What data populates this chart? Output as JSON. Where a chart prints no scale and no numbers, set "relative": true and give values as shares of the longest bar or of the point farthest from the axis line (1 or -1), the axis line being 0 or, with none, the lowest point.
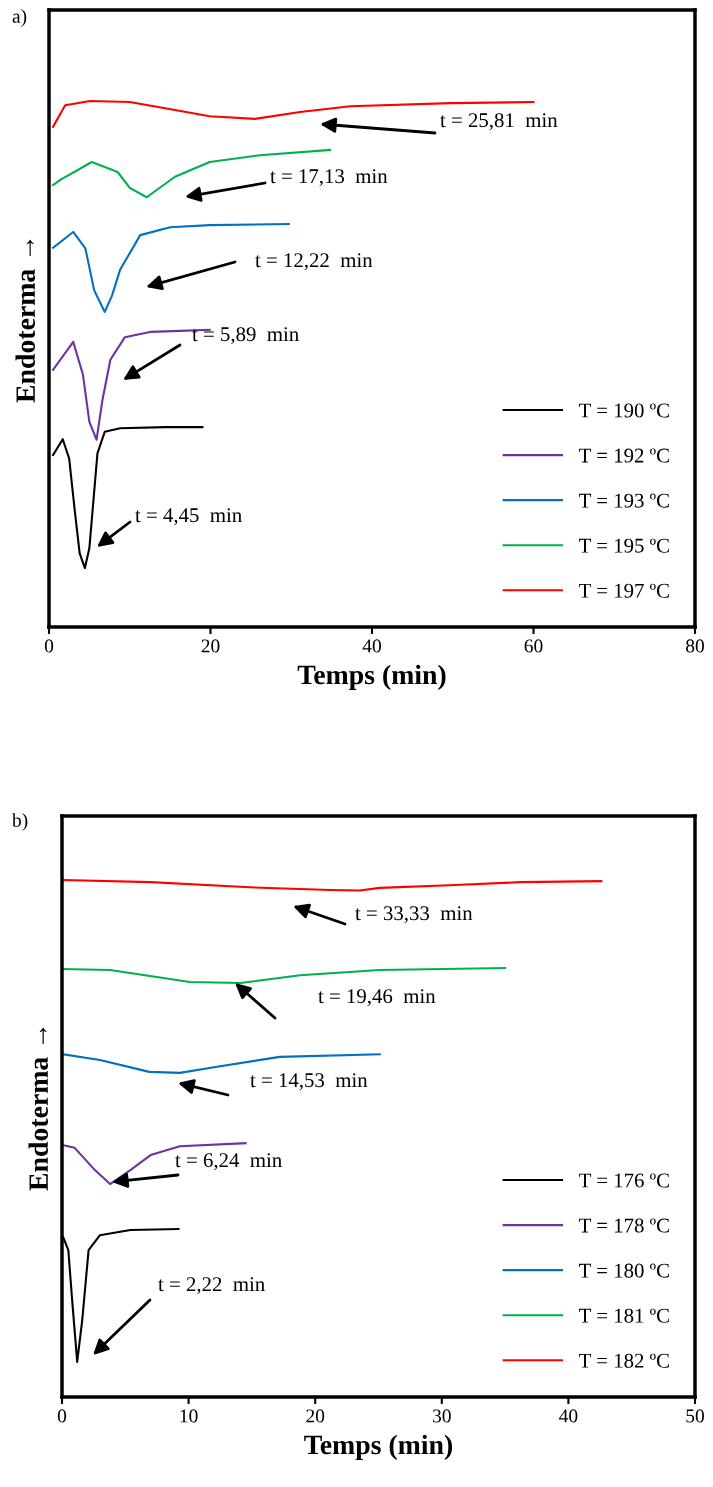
{
  "chart_data": [
    {
      "type": "line",
      "relative": true,
      "title": "a)",
      "xlabel": "Temps (min)",
      "ylabel": "Endoterma →",
      "xlim": [
        0,
        80
      ],
      "xticks": [
        0,
        20,
        40,
        60,
        80
      ],
      "tick_labels": "x",
      "legend": "bottom right",
      "grid": false,
      "marker": "none",
      "line_style": "solid",
      "series": [
        {
          "name": "T = 190 ºC",
          "color": "#000000",
          "x": [
            0.5,
            1.7,
            2.5,
            3.2,
            3.8,
            4.45,
            5.0,
            5.5,
            6.0,
            6.9,
            8.8,
            14.4,
            19.0
          ],
          "values": [
            0.327,
            0.357,
            0.32,
            0.22,
            0.14,
            0.112,
            0.15,
            0.24,
            0.33,
            0.371,
            0.378,
            0.38,
            0.38
          ]
        },
        {
          "name": "T = 192 ºC",
          "color": "#7030a0",
          "x": [
            0.5,
            3.0,
            4.2,
            5.0,
            5.89,
            6.6,
            7.6,
            9.4,
            12.5,
            16.2,
            19.9
          ],
          "values": [
            0.489,
            0.542,
            0.48,
            0.39,
            0.356,
            0.43,
            0.508,
            0.551,
            0.561,
            0.563,
            0.565
          ]
        },
        {
          "name": "T = 193 ºC",
          "color": "#0070c0",
          "x": [
            0.5,
            3.0,
            4.5,
            5.6,
            6.9,
            7.8,
            8.8,
            11.3,
            15.0,
            19.9,
            29.7
          ],
          "values": [
            0.721,
            0.751,
            0.72,
            0.64,
            0.599,
            0.63,
            0.679,
            0.745,
            0.76,
            0.764,
            0.766
          ]
        },
        {
          "name": "T = 195 ºC",
          "color": "#00b050",
          "x": [
            0.5,
            1.4,
            5.3,
            8.5,
            10.0,
            12.1,
            15.6,
            19.9,
            26.1,
            34.8
          ],
          "values": [
            0.84,
            0.85,
            0.884,
            0.865,
            0.835,
            0.817,
            0.856,
            0.884,
            0.897,
            0.907
          ]
        },
        {
          "name": "T = 197 ºC",
          "color": "#ff0000",
          "x": [
            0.5,
            2.0,
            5.1,
            10.0,
            15.6,
            19.9,
            25.5,
            31.1,
            37.3,
            49.7,
            60.0
          ],
          "values": [
            0.951,
            0.992,
            1.0,
            0.998,
            0.983,
            0.971,
            0.966,
            0.979,
            0.99,
            0.996,
            0.998
          ]
        }
      ],
      "annotations": [
        "t = 25,81  min",
        "t = 17,13  min",
        "t = 12,22  min",
        "t = 5,89  min",
        "t = 4,45  min"
      ]
    },
    {
      "type": "line",
      "relative": true,
      "title": "b)",
      "xlabel": "Temps (min)",
      "ylabel": "Endoterma →",
      "xlim": [
        0,
        50
      ],
      "xticks": [
        0,
        10,
        20,
        30,
        40,
        50
      ],
      "tick_labels": "x",
      "legend": "bottom right",
      "grid": false,
      "marker": "none",
      "line_style": "solid",
      "series": [
        {
          "name": "T = 176 ºC",
          "color": "#000000",
          "x": [
            0.1,
            0.5,
            0.8,
            1.2,
            1.6,
            2.1,
            3.0,
            5.4,
            9.2
          ],
          "values": [
            0.309,
            0.284,
            0.188,
            0.068,
            0.149,
            0.284,
            0.313,
            0.323,
            0.325
          ]
        },
        {
          "name": "T = 178 ºC",
          "color": "#7030a0",
          "x": [
            0.1,
            1.0,
            2.6,
            3.8,
            5.4,
            7.0,
            9.3,
            14.5
          ],
          "values": [
            0.487,
            0.482,
            0.439,
            0.412,
            0.439,
            0.468,
            0.485,
            0.491
          ]
        },
        {
          "name": "T = 180 ºC",
          "color": "#0070c0",
          "x": [
            0.1,
            3.0,
            6.9,
            9.3,
            12.5,
            17.2,
            25.1
          ],
          "values": [
            0.663,
            0.652,
            0.629,
            0.627,
            0.64,
            0.658,
            0.663
          ]
        },
        {
          "name": "T = 181 ºC",
          "color": "#00b050",
          "x": [
            0.0,
            3.8,
            10.1,
            14.1,
            18.8,
            25.1,
            35.0
          ],
          "values": [
            0.828,
            0.826,
            0.803,
            0.801,
            0.816,
            0.826,
            0.83
          ]
        },
        {
          "name": "T = 182 ºC",
          "color": "#ff0000",
          "x": [
            0.1,
            7.0,
            14.8,
            21.2,
            23.5,
            25.1,
            30.6,
            36.2,
            42.6
          ],
          "values": [
            1.0,
            0.996,
            0.986,
            0.981,
            0.98,
            0.985,
            0.99,
            0.996,
            0.998
          ]
        }
      ],
      "annotations": [
        "t = 33,33  min",
        "t = 19,46  min",
        "t = 14,53  min",
        "t = 6,24  min",
        "t = 2,22  min"
      ]
    }
  ]
}
